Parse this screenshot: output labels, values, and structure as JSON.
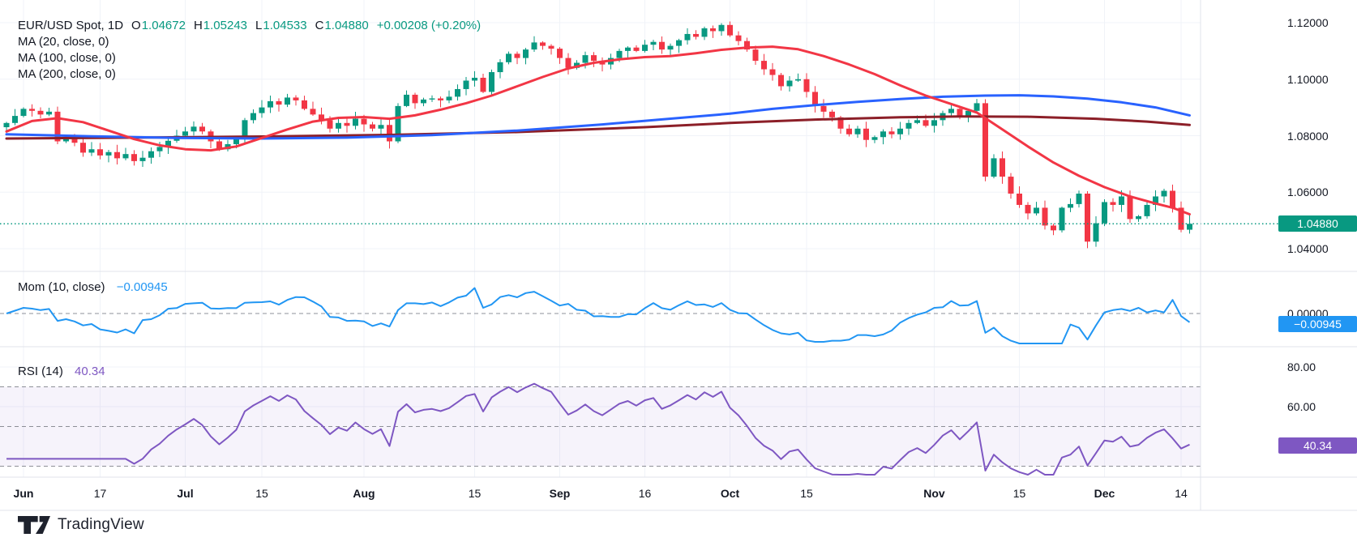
{
  "header": {
    "symbol_line": {
      "symbol": "EUR/USD Spot, 1D",
      "o_label": "O",
      "o": "1.04672",
      "h_label": "H",
      "h": "1.05243",
      "l_label": "L",
      "l": "1.04533",
      "c_label": "C",
      "c": "1.04880",
      "change": "+0.00208 (+0.20%)"
    },
    "ma_lines": [
      "MA (20, close, 0)",
      "MA (100, close, 0)",
      "MA (200, close, 0)"
    ]
  },
  "panes": {
    "mom": {
      "label": "Mom (10, close)",
      "value": "−0.00945",
      "badge": "−0.00945",
      "color": "#2196f3"
    },
    "rsi": {
      "label": "RSI (14)",
      "value": "40.34",
      "badge": "40.34",
      "color": "#7e57c2"
    }
  },
  "price_axis": {
    "ticks": [
      {
        "v": 1.12,
        "label": "1.12000"
      },
      {
        "v": 1.1,
        "label": "1.10000"
      },
      {
        "v": 1.08,
        "label": "1.08000"
      },
      {
        "v": 1.06,
        "label": "1.06000"
      },
      {
        "v": 1.04,
        "label": "1.04000"
      }
    ],
    "badge": {
      "label": "1.04880",
      "color": "#089981"
    }
  },
  "mom_axis": {
    "ticks": [
      {
        "v": 0,
        "label": "0.00000"
      }
    ]
  },
  "rsi_axis": {
    "ticks": [
      {
        "v": 80,
        "label": "80.00"
      },
      {
        "v": 60,
        "label": "60.00"
      }
    ]
  },
  "time_axis": [
    {
      "label": "Jun",
      "i": 2,
      "bold": true
    },
    {
      "label": "17",
      "i": 11,
      "bold": false
    },
    {
      "label": "Jul",
      "i": 21,
      "bold": true
    },
    {
      "label": "15",
      "i": 30,
      "bold": false
    },
    {
      "label": "Aug",
      "i": 42,
      "bold": true
    },
    {
      "label": "15",
      "i": 55,
      "bold": false
    },
    {
      "label": "Sep",
      "i": 65,
      "bold": true
    },
    {
      "label": "16",
      "i": 75,
      "bold": false
    },
    {
      "label": "Oct",
      "i": 85,
      "bold": true
    },
    {
      "label": "15",
      "i": 94,
      "bold": false
    },
    {
      "label": "Nov",
      "i": 109,
      "bold": true
    },
    {
      "label": "15",
      "i": 119,
      "bold": false
    },
    {
      "label": "Dec",
      "i": 129,
      "bold": true
    },
    {
      "label": "14",
      "i": 138,
      "bold": false
    }
  ],
  "chart_data": {
    "type": "candlestick",
    "title": "EUR/USD Spot, 1D",
    "interval": "1D",
    "x_range": [
      "Jun",
      "Dec 14"
    ],
    "ylim": [
      1.036,
      1.125
    ],
    "grid": true,
    "legend_position": "top-left",
    "last": {
      "open": 1.04672,
      "high": 1.05243,
      "low": 1.04533,
      "close": 1.0488,
      "change": "+0.00208 (+0.20%)"
    },
    "price_line": 1.0488,
    "colors": {
      "up": "#089981",
      "down": "#f23645"
    },
    "closes": [
      1.0845,
      1.087,
      1.0895,
      1.0888,
      1.0875,
      1.0885,
      1.078,
      1.0795,
      1.0775,
      1.074,
      1.0752,
      1.073,
      1.0742,
      1.072,
      1.0735,
      1.071,
      1.0722,
      1.0745,
      1.076,
      1.0782,
      1.08,
      1.0815,
      1.0832,
      1.0815,
      1.078,
      1.0752,
      1.077,
      1.0792,
      1.0855,
      1.088,
      1.09,
      1.0922,
      1.091,
      1.0935,
      1.0925,
      1.0895,
      1.0875,
      1.0855,
      1.0825,
      1.0845,
      1.0835,
      1.086,
      1.084,
      1.0825,
      1.0838,
      1.078,
      1.0905,
      1.0945,
      1.0915,
      1.0928,
      1.0932,
      1.0925,
      1.0938,
      1.0965,
      1.0995,
      1.1005,
      1.0955,
      1.1025,
      1.106,
      1.109,
      1.1075,
      1.1105,
      1.113,
      1.1118,
      1.1108,
      1.1075,
      1.104,
      1.1058,
      1.1085,
      1.1065,
      1.1052,
      1.1075,
      1.11,
      1.1112,
      1.11,
      1.1122,
      1.1132,
      1.1105,
      1.1118,
      1.1138,
      1.116,
      1.115,
      1.118,
      1.117,
      1.1192,
      1.1155,
      1.1135,
      1.1105,
      1.1065,
      1.1035,
      1.1015,
      1.0975,
      1.0995,
      1.1,
      1.0955,
      1.0905,
      1.0885,
      1.0865,
      1.0825,
      1.0805,
      1.0825,
      1.0785,
      1.0795,
      1.0815,
      1.0805,
      1.0825,
      1.0845,
      1.0855,
      1.0835,
      1.0855,
      1.088,
      1.0895,
      1.0865,
      1.0888,
      1.0915,
      1.0655,
      1.072,
      1.0655,
      1.0595,
      1.0555,
      1.0525,
      1.0545,
      1.0482,
      1.0465,
      1.0545,
      1.0558,
      1.0595,
      1.0425,
      1.049,
      1.0565,
      1.0555,
      1.0585,
      1.0505,
      1.0515,
      1.0555,
      1.0585,
      1.0605,
      1.0545,
      1.0467,
      1.0488
    ],
    "overlays": [
      {
        "name": "MA20",
        "color": "#f23645",
        "width": 3,
        "points": [
          [
            0,
            1.0815
          ],
          [
            3,
            1.0852
          ],
          [
            6,
            1.0862
          ],
          [
            9,
            1.0848
          ],
          [
            12,
            1.0818
          ],
          [
            15,
            1.0788
          ],
          [
            18,
            1.0766
          ],
          [
            21,
            1.0752
          ],
          [
            24,
            1.0748
          ],
          [
            27,
            1.0762
          ],
          [
            30,
            1.0792
          ],
          [
            33,
            1.0822
          ],
          [
            36,
            1.085
          ],
          [
            39,
            1.0863
          ],
          [
            42,
            1.0866
          ],
          [
            45,
            1.086
          ],
          [
            48,
            1.0872
          ],
          [
            51,
            1.0892
          ],
          [
            54,
            1.0915
          ],
          [
            57,
            1.0942
          ],
          [
            60,
            1.0975
          ],
          [
            63,
            1.1008
          ],
          [
            66,
            1.1038
          ],
          [
            69,
            1.1058
          ],
          [
            72,
            1.107
          ],
          [
            75,
            1.1078
          ],
          [
            78,
            1.1082
          ],
          [
            81,
            1.1092
          ],
          [
            84,
            1.1104
          ],
          [
            87,
            1.1112
          ],
          [
            90,
            1.1115
          ],
          [
            93,
            1.1106
          ],
          [
            96,
            1.1082
          ],
          [
            99,
            1.1052
          ],
          [
            102,
            1.1018
          ],
          [
            105,
            1.0978
          ],
          [
            108,
            1.0942
          ],
          [
            111,
            1.0912
          ],
          [
            114,
            1.0882
          ],
          [
            117,
            1.0822
          ],
          [
            120,
            1.0762
          ],
          [
            123,
            1.0705
          ],
          [
            126,
            1.0658
          ],
          [
            129,
            1.0618
          ],
          [
            132,
            1.0585
          ],
          [
            135,
            1.056
          ],
          [
            137,
            1.0545
          ],
          [
            139,
            1.0522
          ]
        ]
      },
      {
        "name": "MA100",
        "color": "#2962ff",
        "width": 3,
        "points": [
          [
            0,
            1.0805
          ],
          [
            10,
            1.0798
          ],
          [
            20,
            1.0792
          ],
          [
            30,
            1.079
          ],
          [
            40,
            1.0793
          ],
          [
            50,
            1.0802
          ],
          [
            60,
            1.0818
          ],
          [
            70,
            1.084
          ],
          [
            80,
            1.0865
          ],
          [
            85,
            1.0878
          ],
          [
            90,
            1.0895
          ],
          [
            95,
            1.0908
          ],
          [
            100,
            1.092
          ],
          [
            105,
            1.093
          ],
          [
            110,
            1.0938
          ],
          [
            115,
            1.0942
          ],
          [
            119,
            1.0943
          ],
          [
            123,
            1.0939
          ],
          [
            127,
            1.0931
          ],
          [
            131,
            1.0918
          ],
          [
            135,
            1.09
          ],
          [
            139,
            1.0872
          ]
        ]
      },
      {
        "name": "MA200",
        "color": "#8c1f28",
        "width": 3,
        "points": [
          [
            0,
            1.079
          ],
          [
            15,
            1.0793
          ],
          [
            30,
            1.0797
          ],
          [
            45,
            1.0803
          ],
          [
            60,
            1.0813
          ],
          [
            75,
            1.083
          ],
          [
            85,
            1.0845
          ],
          [
            95,
            1.0857
          ],
          [
            105,
            1.0865
          ],
          [
            112,
            1.0868
          ],
          [
            120,
            1.0867
          ],
          [
            128,
            1.086
          ],
          [
            134,
            1.085
          ],
          [
            139,
            1.0838
          ]
        ]
      }
    ],
    "indicators": [
      {
        "name": "Mom",
        "params": [
          10,
          "close"
        ],
        "last": -0.00945,
        "color": "#2196f3",
        "zero_line": 0
      },
      {
        "name": "RSI",
        "params": [
          14
        ],
        "last": 40.34,
        "color": "#7e57c2",
        "bands": [
          70,
          50,
          30
        ],
        "band_fill": "rgba(126,87,194,0.07)"
      }
    ]
  },
  "attribution": "TradingView"
}
